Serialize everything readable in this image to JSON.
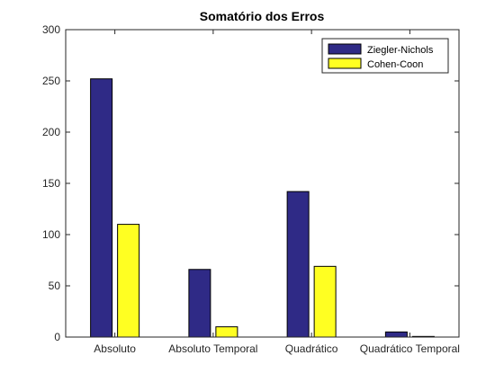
{
  "chart_data": {
    "type": "bar",
    "title": "Somatório dos Erros",
    "xlabel": "",
    "ylabel": "",
    "categories": [
      "Absoluto",
      "Absoluto Temporal",
      "Quadrático",
      "Quadrático Temporal"
    ],
    "series": [
      {
        "name": "Ziegler-Nichols",
        "color": "#2f2a86",
        "values": [
          252,
          66,
          142,
          5
        ]
      },
      {
        "name": "Cohen-Coon",
        "color": "#ffff22",
        "values": [
          110,
          10,
          69,
          0.6
        ]
      }
    ],
    "ylim": [
      0,
      300
    ],
    "yticks": [
      0,
      50,
      100,
      150,
      200,
      250,
      300
    ],
    "grid": false,
    "legend_position": "top-right"
  }
}
